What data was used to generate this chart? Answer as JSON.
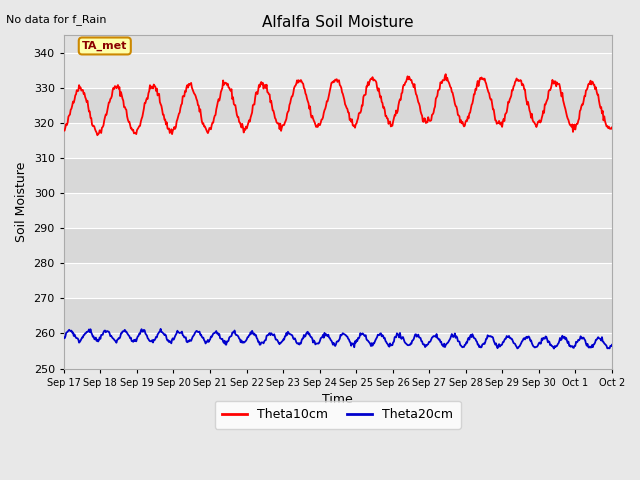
{
  "title": "Alfalfa Soil Moisture",
  "no_data_text": "No data for f_Rain",
  "ylabel": "Soil Moisture",
  "xlabel": "Time",
  "ylim": [
    250,
    345
  ],
  "yticks": [
    250,
    260,
    270,
    280,
    290,
    300,
    310,
    320,
    330,
    340
  ],
  "x_tick_labels": [
    "Sep 17",
    "Sep 18",
    "Sep 19",
    "Sep 20",
    "Sep 21",
    "Sep 22",
    "Sep 23",
    "Sep 24",
    "Sep 25",
    "Sep 26",
    "Sep 27",
    "Sep 28",
    "Sep 29",
    "Sep 30",
    "Oct 1",
    "Oct 2"
  ],
  "theta10_color": "#ff0000",
  "theta20_color": "#0000cc",
  "fig_bg_color": "#e8e8e8",
  "plot_bg_color": "#e0e0e0",
  "band_color_light": "#e8e8e8",
  "band_color_dark": "#d8d8d8",
  "legend_label_10": "Theta10cm",
  "legend_label_20": "Theta20cm",
  "ta_met_label": "TA_met",
  "ta_met_bg": "#ffffaa",
  "ta_met_text_color": "#8b0000",
  "ta_met_border": "#cc8800"
}
